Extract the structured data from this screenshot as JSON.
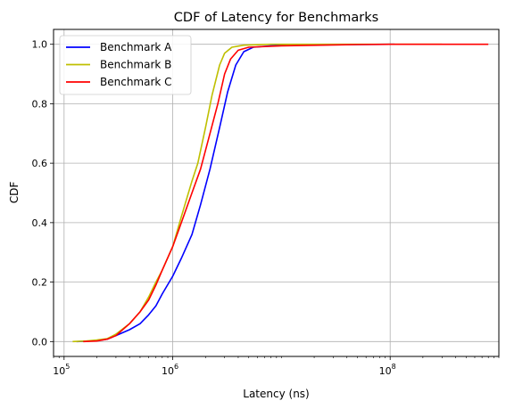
{
  "chart_data": {
    "type": "line",
    "title": "CDF of Latency for Benchmarks",
    "xlabel": "Latency (ns)",
    "ylabel": "CDF",
    "xscale": "log",
    "xlim": [
      80000,
      1000000000
    ],
    "ylim": [
      -0.05,
      1.05
    ],
    "x_ticks": [
      {
        "value": 100000,
        "base": "10",
        "exp": "5"
      },
      {
        "value": 1000000,
        "base": "10",
        "exp": "6"
      },
      {
        "value": 100000000,
        "base": "10",
        "exp": "8"
      }
    ],
    "y_ticks": [
      "0.0",
      "0.2",
      "0.4",
      "0.6",
      "0.8",
      "1.0"
    ],
    "grid": true,
    "legend_position": "top-left",
    "series": [
      {
        "name": "Benchmark A",
        "color": "#0000ff",
        "points": [
          [
            130000,
            0
          ],
          [
            160000,
            0.001
          ],
          [
            200000,
            0.003
          ],
          [
            250000,
            0.008
          ],
          [
            300000,
            0.02
          ],
          [
            400000,
            0.04
          ],
          [
            500000,
            0.06
          ],
          [
            600000,
            0.09
          ],
          [
            700000,
            0.12
          ],
          [
            800000,
            0.16
          ],
          [
            1000000,
            0.22
          ],
          [
            1200000,
            0.28
          ],
          [
            1500000,
            0.36
          ],
          [
            1800000,
            0.46
          ],
          [
            2200000,
            0.58
          ],
          [
            2700000,
            0.72
          ],
          [
            3200000,
            0.84
          ],
          [
            3800000,
            0.93
          ],
          [
            4500000,
            0.975
          ],
          [
            5500000,
            0.99
          ],
          [
            8000000,
            0.995
          ],
          [
            20000000,
            0.998
          ],
          [
            100000000,
            1.0
          ],
          [
            110000000,
            1.0
          ]
        ]
      },
      {
        "name": "Benchmark B",
        "color": "#bfbf00",
        "points": [
          [
            120000,
            0
          ],
          [
            160000,
            0.002
          ],
          [
            200000,
            0.005
          ],
          [
            250000,
            0.01
          ],
          [
            300000,
            0.025
          ],
          [
            400000,
            0.06
          ],
          [
            500000,
            0.1
          ],
          [
            600000,
            0.15
          ],
          [
            700000,
            0.2
          ],
          [
            800000,
            0.24
          ],
          [
            1000000,
            0.32
          ],
          [
            1200000,
            0.42
          ],
          [
            1500000,
            0.54
          ],
          [
            1700000,
            0.6
          ],
          [
            2000000,
            0.72
          ],
          [
            2300000,
            0.83
          ],
          [
            2700000,
            0.93
          ],
          [
            3000000,
            0.97
          ],
          [
            3500000,
            0.99
          ],
          [
            4500000,
            0.997
          ],
          [
            8000000,
            1.0
          ],
          [
            300000000,
            1.0
          ]
        ]
      },
      {
        "name": "Benchmark C",
        "color": "#ff0000",
        "points": [
          [
            150000,
            0
          ],
          [
            200000,
            0.002
          ],
          [
            250000,
            0.008
          ],
          [
            300000,
            0.02
          ],
          [
            400000,
            0.06
          ],
          [
            500000,
            0.1
          ],
          [
            600000,
            0.14
          ],
          [
            700000,
            0.19
          ],
          [
            800000,
            0.24
          ],
          [
            1000000,
            0.32
          ],
          [
            1200000,
            0.4
          ],
          [
            1500000,
            0.5
          ],
          [
            1800000,
            0.58
          ],
          [
            2200000,
            0.7
          ],
          [
            2600000,
            0.8
          ],
          [
            3000000,
            0.9
          ],
          [
            3400000,
            0.95
          ],
          [
            4000000,
            0.98
          ],
          [
            5000000,
            0.99
          ],
          [
            10000000,
            0.995
          ],
          [
            50000000,
            0.999
          ],
          [
            100000000,
            1.0
          ],
          [
            800000000,
            1.0
          ]
        ]
      }
    ]
  }
}
